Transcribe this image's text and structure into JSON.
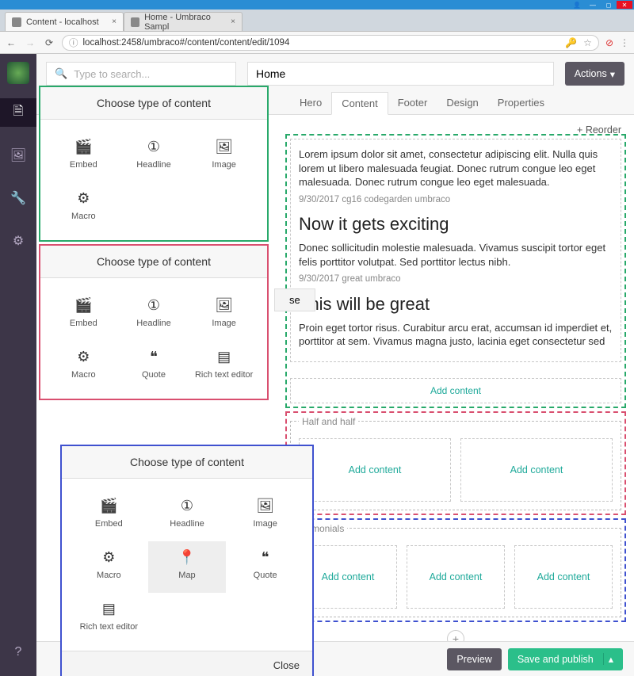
{
  "browser": {
    "tabs": [
      {
        "title": "Content - localhost"
      },
      {
        "title": "Home - Umbraco Sampl"
      }
    ],
    "url": "localhost:2458/umbraco#/content/content/edit/1094"
  },
  "search_placeholder": "Type to search...",
  "node_name": "Home",
  "actions_label": "Actions",
  "content_tabs": [
    "Hero",
    "Content",
    "Footer",
    "Design",
    "Properties"
  ],
  "active_tab": "Content",
  "reorder_label": "Reorder",
  "block1": {
    "p1": "Lorem ipsum dolor sit amet, consectetur adipiscing elit. Nulla quis lorem ut libero malesuada feugiat. Donec rutrum congue leo eget malesuada. Donec rutrum congue leo eget malesuada.",
    "meta1": "9/30/2017 cg16 codegarden umbraco",
    "h2a": "Now it gets exciting",
    "p2": "Donec sollicitudin molestie malesuada. Vivamus suscipit tortor eget felis porttitor volutpat. Sed porttitor lectus nibh.",
    "meta2": "9/30/2017 great umbraco",
    "h2b": "This will be great",
    "p3": "Proin eget tortor risus. Curabitur arcu erat, accumsan id imperdiet et, porttitor at sem. Vivamus magna justo, lacinia eget consectetur sed"
  },
  "add_content_label": "Add content",
  "regions": {
    "half": "Half and half",
    "testimonials": "stimonials"
  },
  "modal_title": "Choose type of content",
  "modal_close": "Close",
  "items_basic": [
    {
      "icon": "🎬",
      "label": "Embed"
    },
    {
      "icon": "①",
      "label": "Headline"
    },
    {
      "icon": "🖼",
      "label": "Image"
    },
    {
      "icon": "⚙",
      "label": "Macro"
    }
  ],
  "items_mid": [
    {
      "icon": "🎬",
      "label": "Embed"
    },
    {
      "icon": "①",
      "label": "Headline"
    },
    {
      "icon": "🖼",
      "label": "Image"
    },
    {
      "icon": "⚙",
      "label": "Macro"
    },
    {
      "icon": "❝",
      "label": "Quote"
    },
    {
      "icon": "▤",
      "label": "Rich text editor"
    }
  ],
  "items_full": [
    {
      "icon": "🎬",
      "label": "Embed"
    },
    {
      "icon": "①",
      "label": "Headline"
    },
    {
      "icon": "🖼",
      "label": "Image"
    },
    {
      "icon": "⚙",
      "label": "Macro"
    },
    {
      "icon": "📍",
      "label": "Map"
    },
    {
      "icon": "❝",
      "label": "Quote"
    },
    {
      "icon": "▤",
      "label": "Rich text editor"
    }
  ],
  "footer_buttons": {
    "preview": "Preview",
    "publish": "Save and publish"
  },
  "colors": {
    "green": "#28a96a",
    "pink": "#d94f6f",
    "blue": "#3f51cf",
    "teal": "#1ea99a",
    "sidebar": "#3d3648",
    "action": "#5b5762",
    "publish": "#2bbf8a"
  }
}
